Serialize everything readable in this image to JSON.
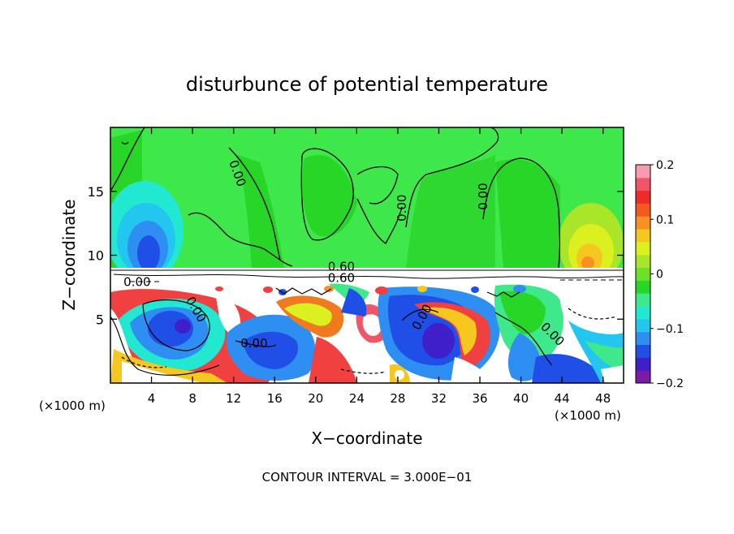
{
  "chart_data": {
    "type": "heatmap",
    "title": "disturbunce of potential temperature",
    "xlabel": "X−coordinate",
    "ylabel": "Z−coordinate",
    "x_unit_left": "(×1000 m)",
    "x_unit_right": "(×1000 m)",
    "xlim": [
      0,
      50
    ],
    "ylim": [
      0,
      20
    ],
    "x_ticks": [
      4,
      8,
      12,
      16,
      20,
      24,
      28,
      32,
      36,
      40,
      44,
      48
    ],
    "x_tick_labels": [
      "4",
      "8",
      "12",
      "16",
      "20",
      "24",
      "28",
      "32",
      "36",
      "40",
      "44",
      "48"
    ],
    "y_ticks": [
      5,
      10,
      15
    ],
    "y_tick_labels": [
      "5",
      "10",
      "15"
    ],
    "contour_interval_text": "CONTOUR INTERVAL = 3.000E−01",
    "contour_labels": [
      {
        "text": "0.00",
        "x": 12.0,
        "z": 16.3,
        "angle": 70
      },
      {
        "text": "0.00",
        "x": 28.8,
        "z": 13.7,
        "angle": -90
      },
      {
        "text": "0.00",
        "x": 36.7,
        "z": 14.6,
        "angle": -90
      },
      {
        "text": "0.60",
        "x": 22.5,
        "z": 8.8,
        "angle": 0
      },
      {
        "text": "0.60",
        "x": 22.5,
        "z": 7.9,
        "angle": 0
      },
      {
        "text": "0.00",
        "x": 2.6,
        "z": 7.6,
        "angle": 0
      },
      {
        "text": "0.00",
        "x": 8.0,
        "z": 5.6,
        "angle": 60
      },
      {
        "text": "0.00",
        "x": 14.0,
        "z": 2.8,
        "angle": 0
      },
      {
        "text": "0.00",
        "x": 30.7,
        "z": 5.0,
        "angle": -60
      },
      {
        "text": "0.00",
        "x": 42.8,
        "z": 3.6,
        "angle": 45
      }
    ],
    "colorbar": {
      "min": -0.2,
      "max": 0.2,
      "tick_values": [
        0.2,
        0.1,
        0,
        -0.1,
        -0.2
      ],
      "tick_labels": [
        "0.2",
        "0.1",
        "0",
        "−0.1",
        "−0.2"
      ],
      "colors": [
        "#7a1aa6",
        "#3f1fc9",
        "#1f4fe6",
        "#2e8ef2",
        "#22c6ef",
        "#22e8d2",
        "#3fe88a",
        "#27d627",
        "#6ee027",
        "#a9e62a",
        "#dcef1f",
        "#f6c81f",
        "#f79121",
        "#f25a1f",
        "#ee2b28",
        "#f25468",
        "#f79bb0"
      ]
    },
    "grid": false,
    "legend": "colorbar-right"
  }
}
